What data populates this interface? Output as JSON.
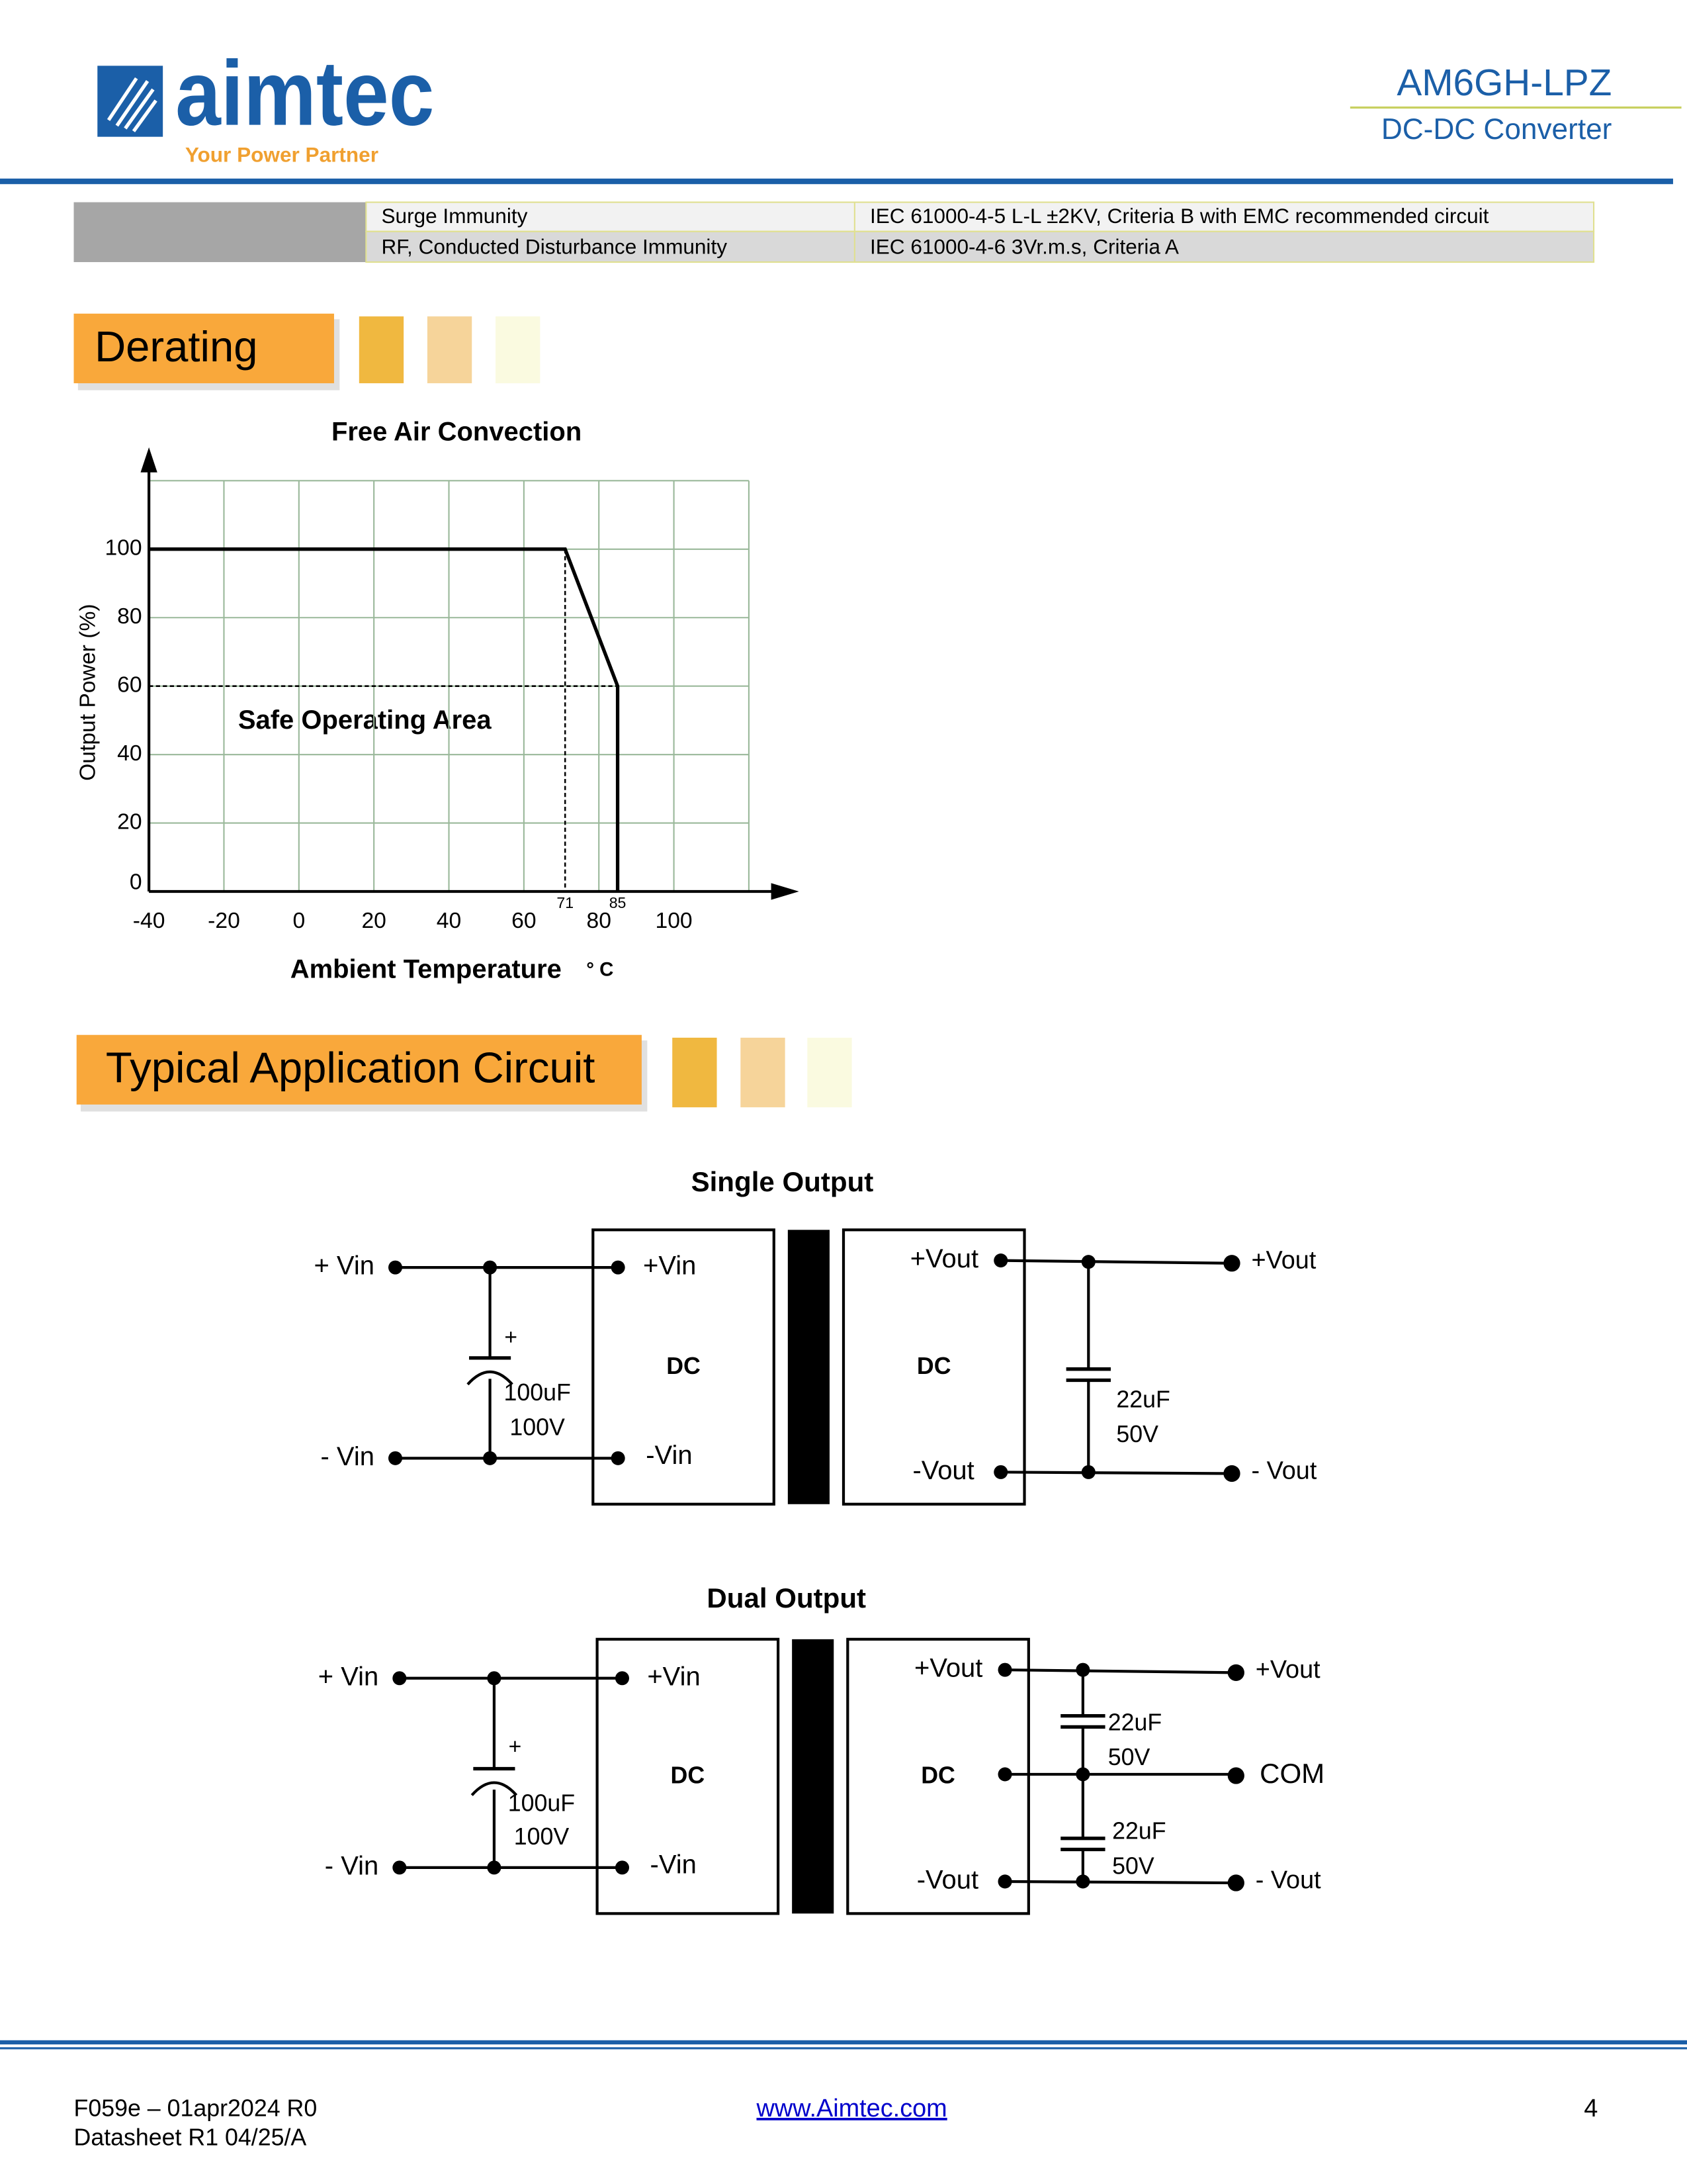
{
  "header": {
    "logo": "aimtec",
    "tagline": "Your Power Partner",
    "product": "AM6GH-LPZ",
    "subtitle": "DC-DC Converter"
  },
  "table": {
    "rows": [
      [
        "Surge Immunity",
        "IEC 61000-4-5 L-L ±2KV, Criteria B with EMC recommended circuit"
      ],
      [
        "RF, Conducted Disturbance Immunity",
        "IEC 61000-4-6 3Vr.m.s, Criteria A"
      ]
    ]
  },
  "sections": [
    "Derating",
    "Typical Application Circuit"
  ],
  "chart_data": {
    "type": "line",
    "title": "Free Air Convection",
    "x_label": "Ambient Temperature",
    "x_unit": "° C",
    "y_label": "Output Power (%)",
    "annotation": "Safe Operating Area",
    "x": [
      -40,
      71,
      85,
      85
    ],
    "series": [
      {
        "color": "#000000",
        "values": [
          100,
          100,
          60,
          0
        ]
      }
    ],
    "marker_xticks": [
      71,
      85
    ],
    "xlim": [
      -40,
      120
    ],
    "ylim": [
      0,
      120
    ],
    "xticks": [
      -40,
      -20,
      0,
      20,
      40,
      60,
      80,
      100
    ],
    "yticks": [
      0,
      20,
      40,
      60,
      80,
      100
    ],
    "grid": true
  },
  "circuits": [
    {
      "title": "Single Output",
      "in_pos": "+ Vin",
      "in_neg": "- Vin",
      "cap_in_plus": "+",
      "cap_in_value": "100uF",
      "cap_in_voltage": "100V",
      "dc_in_pos": "+Vin",
      "dc_in_neg": "-Vin",
      "dc_left": "DC",
      "dc_right": "DC",
      "dc_out_pos": "+Vout",
      "dc_out_neg": "-Vout",
      "out_pos": "+Vout",
      "out_neg": "- Vout",
      "cap_out_value": "22uF",
      "cap_out_voltage": "50V"
    },
    {
      "title": "Dual Output",
      "in_pos": "+ Vin",
      "in_neg": "- Vin",
      "cap_in_plus": "+",
      "cap_in_value": "100uF",
      "cap_in_voltage": "100V",
      "dc_in_pos": "+Vin",
      "dc_in_neg": "-Vin",
      "dc_left": "DC",
      "dc_right": "DC",
      "dc_out_pos": "+Vout",
      "dc_out_neg": "-Vout",
      "out_pos": "+Vout",
      "out_com": "COM",
      "out_neg": "- Vout",
      "cap1_value": "22uF",
      "cap1_voltage": "50V",
      "cap2_value": "22uF",
      "cap2_voltage": "50V"
    }
  ],
  "footer": {
    "form": "F059e – 01apr2024 R0",
    "datasheet": "Datasheet R1 04/25/A",
    "link": "www.Aimtec.com",
    "page": "4"
  }
}
